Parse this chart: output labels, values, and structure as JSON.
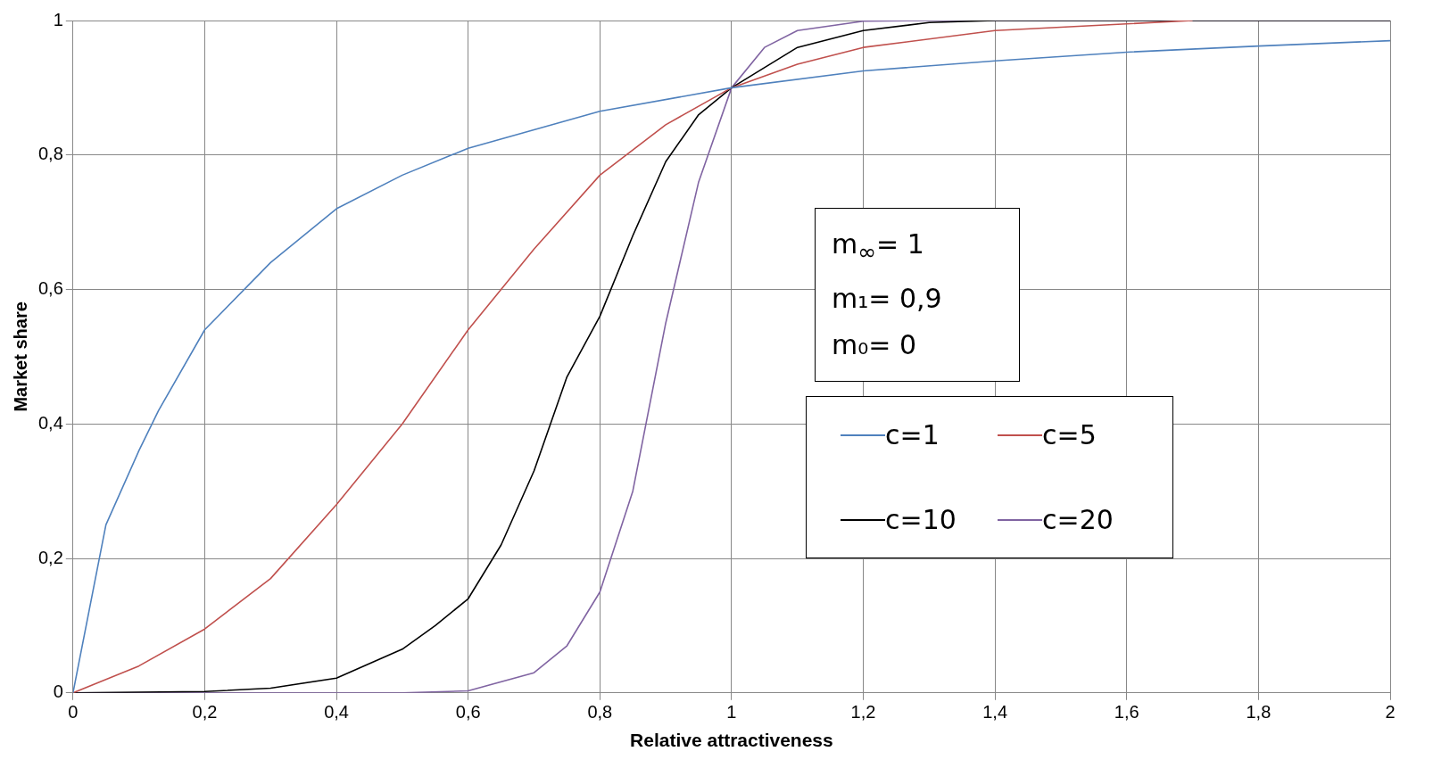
{
  "chart_data": {
    "type": "line",
    "xlabel": "Relative attractiveness",
    "ylabel": "Market share",
    "xlim": [
      0,
      2
    ],
    "ylim": [
      0,
      1
    ],
    "xticks": [
      0,
      {
        "value": 0.2,
        "label": "0,2"
      },
      {
        "value": 0.4,
        "label": "0,4"
      },
      {
        "value": 0.6,
        "label": "0,6"
      },
      {
        "value": 0.8,
        "label": "0,8"
      },
      1,
      {
        "value": 1.2,
        "label": "1,2"
      },
      {
        "value": 1.4,
        "label": "1,4"
      },
      {
        "value": 1.6,
        "label": "1,6"
      },
      {
        "value": 1.8,
        "label": "1,8"
      },
      2
    ],
    "yticks": [
      0,
      {
        "value": 0.2,
        "label": "0,2"
      },
      {
        "value": 0.4,
        "label": "0,4"
      },
      {
        "value": 0.6,
        "label": "0,6"
      },
      {
        "value": 0.8,
        "label": "0,8"
      },
      1
    ],
    "grid": true,
    "legend": "right",
    "marker": "none",
    "line_style": "solid",
    "annotations": [
      "m$_{∞}$= 1",
      "m₁= 0,9",
      "m₀= 0"
    ],
    "series": [
      {
        "name": "c=1",
        "color": "#4f81bd",
        "x": [
          0,
          0.05,
          0.1,
          0.13,
          0.2,
          0.3,
          0.4,
          0.5,
          0.6,
          0.8,
          1,
          1.2,
          1.4,
          1.6,
          1.8,
          2
        ],
        "values": [
          0,
          0.25,
          0.36,
          0.42,
          0.54,
          0.64,
          0.72,
          0.77,
          0.81,
          0.865,
          0.9,
          0.925,
          0.94,
          0.953,
          0.962,
          0.97
        ]
      },
      {
        "name": "c=5",
        "color": "#c0504d",
        "x": [
          0,
          0.1,
          0.2,
          0.3,
          0.4,
          0.5,
          0.6,
          0.7,
          0.8,
          0.9,
          1,
          1.1,
          1.2,
          1.4,
          1.6,
          1.7
        ],
        "values": [
          0,
          0.04,
          0.095,
          0.17,
          0.28,
          0.4,
          0.54,
          0.66,
          0.77,
          0.845,
          0.9,
          0.935,
          0.96,
          0.985,
          0.995,
          1
        ]
      },
      {
        "name": "c=10",
        "color": "#000000",
        "x": [
          0,
          0.2,
          0.3,
          0.4,
          0.5,
          0.55,
          0.6,
          0.65,
          0.7,
          0.75,
          0.8,
          0.85,
          0.9,
          0.95,
          1,
          1.1,
          1.2,
          1.3,
          1.4,
          2
        ],
        "values": [
          0,
          0.002,
          0.007,
          0.022,
          0.065,
          0.1,
          0.14,
          0.22,
          0.33,
          0.47,
          0.56,
          0.68,
          0.79,
          0.86,
          0.9,
          0.96,
          0.985,
          0.997,
          1,
          1
        ]
      },
      {
        "name": "c=20",
        "color": "#8064a2",
        "x": [
          0,
          0.5,
          0.6,
          0.7,
          0.75,
          0.8,
          0.85,
          0.9,
          0.95,
          1,
          1.05,
          1.1,
          1.2,
          1.3,
          2
        ],
        "values": [
          0,
          0,
          0.003,
          0.03,
          0.07,
          0.15,
          0.3,
          0.55,
          0.76,
          0.9,
          0.96,
          0.985,
          0.999,
          1,
          1
        ]
      }
    ]
  }
}
